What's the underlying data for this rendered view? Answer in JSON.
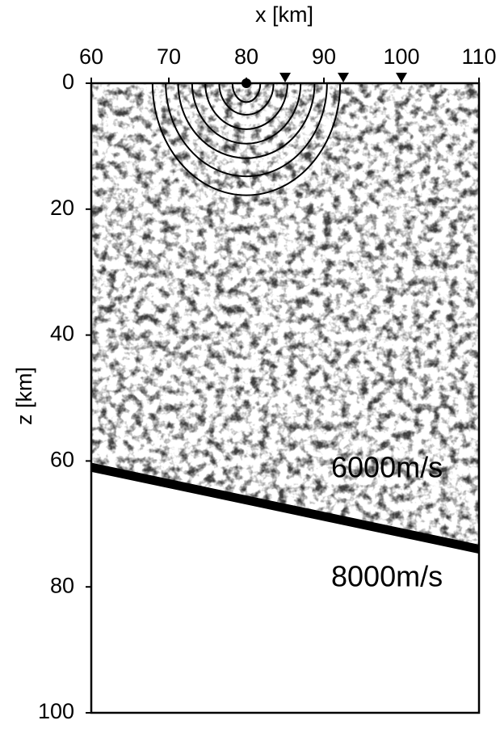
{
  "chart_data": {
    "type": "velocity-model",
    "xlabel": "x [km]",
    "ylabel": "z [km]",
    "xlim": [
      60,
      110
    ],
    "xticks": [
      60,
      70,
      80,
      90,
      100,
      110
    ],
    "ylim": [
      0,
      100
    ],
    "yticks": [
      0,
      20,
      40,
      60,
      80,
      100
    ],
    "source": {
      "x": 80,
      "z": 0
    },
    "receivers": [
      85,
      92.5,
      100
    ],
    "wavefronts": {
      "x_radius": [
        1.8,
        3.5,
        5.3,
        7.0,
        8.8,
        10.4,
        12.1
      ],
      "z_radius": [
        3.0,
        5.0,
        7.3,
        9.6,
        11.9,
        14.8,
        17.8
      ]
    },
    "interface": {
      "x": [
        60,
        110
      ],
      "z": [
        61,
        74
      ]
    },
    "annotations": [
      "6000m/s",
      "8000m/s"
    ]
  }
}
